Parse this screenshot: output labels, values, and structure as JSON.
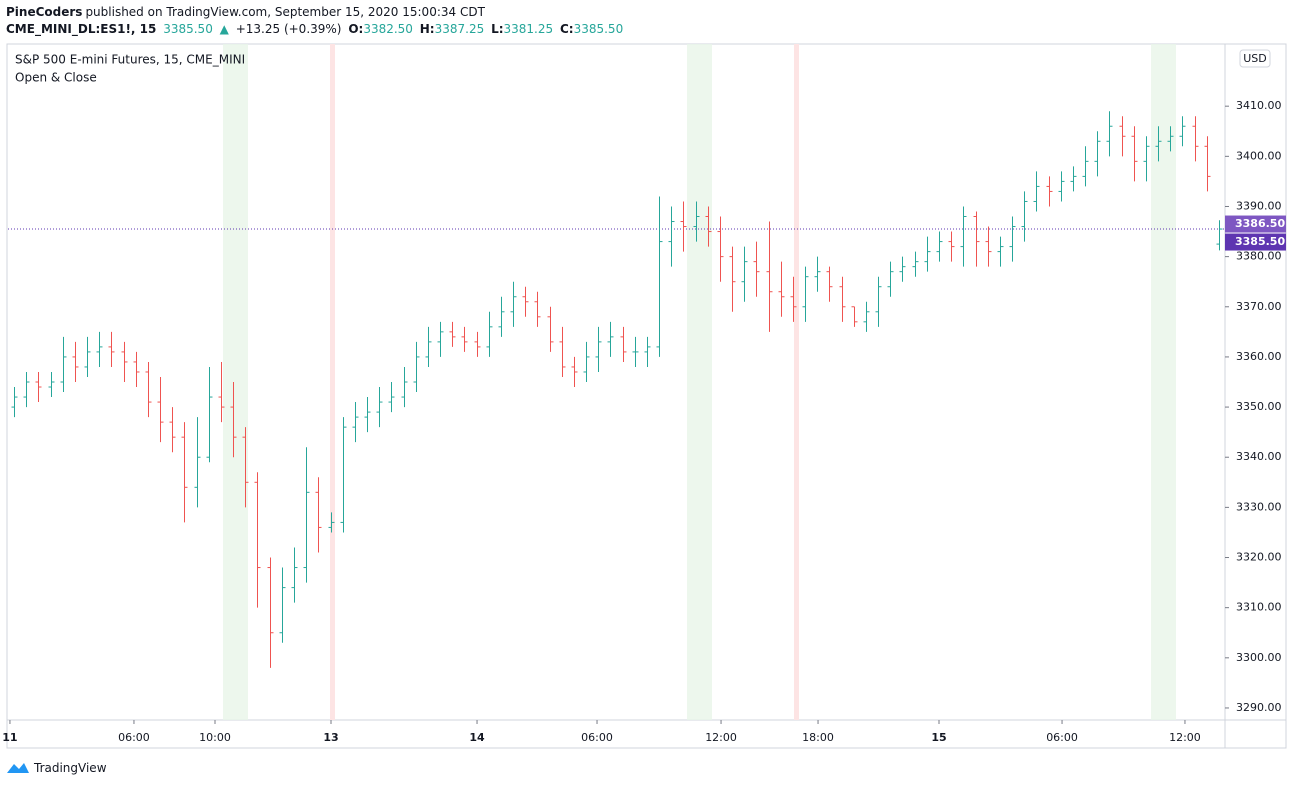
{
  "header": {
    "author": "PineCoders",
    "published": "published on TradingView.com, September 15, 2020 15:00:34 CDT",
    "quote": {
      "symbol": "CME_MINI_DL:ES1!, 15",
      "last": "3385.50",
      "arrow": "▲",
      "change": "+13.25 (+0.39%)",
      "o_label": "O:",
      "o": "3382.50",
      "h_label": "H:",
      "h": "3387.25",
      "l_label": "L:",
      "l": "3381.25",
      "c_label": "C:",
      "c": "3385.50"
    }
  },
  "footer": {
    "brand": "TradingView"
  },
  "chart_data": {
    "type": "ohlc",
    "title": "S&P 500 E-mini Futures, 15, CME_MINI",
    "subtitle": "Open & Close",
    "currency": "USD",
    "up_color": "#26a69a",
    "down_color": "#ef5350",
    "xlim": [
      -0.5,
      99.5
    ],
    "xticks": [
      {
        "value": -0.34,
        "label": "11"
      },
      {
        "value": 9.85,
        "label": "06:00"
      },
      {
        "value": 16.51,
        "label": "10:00"
      },
      {
        "value": 26.04,
        "label": "13"
      },
      {
        "value": 38.04,
        "label": "14"
      },
      {
        "value": 47.9,
        "label": "06:00"
      },
      {
        "value": 58.09,
        "label": "12:00"
      },
      {
        "value": 66.06,
        "label": "18:00"
      },
      {
        "value": 76.0,
        "label": "15"
      },
      {
        "value": 86.11,
        "label": "06:00"
      },
      {
        "value": 96.21,
        "label": "12:00"
      }
    ],
    "ylim": [
      3287.6,
      3422.4
    ],
    "yticks": [
      {
        "value": 3290,
        "label": "3290.00"
      },
      {
        "value": 3300,
        "label": "3300.00"
      },
      {
        "value": 3310,
        "label": "3310.00"
      },
      {
        "value": 3320,
        "label": "3320.00"
      },
      {
        "value": 3330,
        "label": "3330.00"
      },
      {
        "value": 3340,
        "label": "3340.00"
      },
      {
        "value": 3350,
        "label": "3350.00"
      },
      {
        "value": 3360,
        "label": "3360.00"
      },
      {
        "value": 3370,
        "label": "3370.00"
      },
      {
        "value": 3380,
        "label": "3380.00"
      },
      {
        "value": 3390,
        "label": "3390.00"
      },
      {
        "value": 3400,
        "label": "3400.00"
      },
      {
        "value": 3410,
        "label": "3410.00"
      }
    ],
    "price_labels": [
      {
        "value": 3386.5,
        "label": "3386.50",
        "color": "#7e57c2"
      },
      {
        "value": 3385.5,
        "label": "3385.50",
        "color": "#5e35b1"
      }
    ],
    "price_line": 3385.5,
    "open": [
      3350,
      3352,
      3355,
      3354,
      3355,
      3360,
      3358,
      3361,
      3362,
      3361,
      3359,
      3357,
      3351,
      3347,
      3344,
      3334,
      3340,
      3352,
      3350,
      3344,
      3335,
      3318,
      3305,
      3314,
      3318,
      3333,
      3326,
      3327,
      3346,
      3348,
      3349,
      3351,
      3352,
      3355,
      3360,
      3363,
      3365,
      3364,
      3363,
      3362,
      3366,
      3369,
      3372,
      3371,
      3368,
      3363,
      3358,
      3357,
      3360,
      3363,
      3364,
      3361,
      3361,
      3362,
      3383,
      3387,
      3386,
      3388,
      3385,
      3380,
      3375,
      3379,
      3377,
      3373,
      3372,
      3370,
      3376,
      3377,
      3374,
      3370,
      3367,
      3369,
      3374,
      3377,
      3378,
      3379,
      3381,
      3383,
      3382,
      3388,
      3383,
      3381,
      3382,
      3386,
      3391,
      3394,
      3393,
      3395,
      3396,
      3399,
      3403,
      3406,
      3404,
      3399,
      3402,
      3403,
      3404,
      3406,
      3402,
      3382.5
    ],
    "high": [
      3354,
      3357,
      3357,
      3357,
      3364,
      3363,
      3364,
      3365,
      3365,
      3363,
      3361,
      3359,
      3356,
      3350,
      3347,
      3348,
      3358,
      3359,
      3355,
      3346,
      3337,
      3320,
      3318,
      3322,
      3342,
      3336,
      3329,
      3348,
      3351,
      3352,
      3354,
      3355,
      3358,
      3363,
      3366,
      3367,
      3367,
      3366,
      3365,
      3369,
      3372,
      3375,
      3374,
      3373,
      3370,
      3366,
      3360,
      3363,
      3366,
      3367,
      3366,
      3364,
      3364,
      3392,
      3390,
      3391,
      3391,
      3390,
      3388,
      3382,
      3382,
      3383,
      3387,
      3379,
      3376,
      3378,
      3380,
      3378,
      3376,
      3370,
      3371,
      3376,
      3379,
      3380,
      3381,
      3384,
      3385,
      3385,
      3390,
      3389,
      3386,
      3384,
      3388,
      3393,
      3397,
      3396,
      3397,
      3398,
      3402,
      3405,
      3409,
      3408,
      3406,
      3404,
      3406,
      3406,
      3408,
      3408,
      3404,
      3387.25
    ],
    "low": [
      3348,
      3350,
      3351,
      3352,
      3353,
      3355,
      3356,
      3358,
      3358,
      3355,
      3354,
      3348,
      3343,
      3341,
      3327,
      3330,
      3339,
      3347,
      3340,
      3330,
      3310,
      3298,
      3303,
      3311,
      3315,
      3321,
      3325,
      3325,
      3343,
      3345,
      3346,
      3349,
      3350,
      3353,
      3358,
      3360,
      3362,
      3361,
      3360,
      3360,
      3364,
      3366,
      3368,
      3366,
      3361,
      3356,
      3354,
      3355,
      3357,
      3360,
      3359,
      3358,
      3358,
      3360,
      3378,
      3381,
      3383,
      3382,
      3375,
      3369,
      3371,
      3372,
      3365,
      3368,
      3367,
      3367,
      3373,
      3371,
      3367,
      3366,
      3365,
      3366,
      3372,
      3375,
      3376,
      3377,
      3379,
      3379,
      3378,
      3378,
      3378,
      3378,
      3379,
      3383,
      3389,
      3390,
      3391,
      3393,
      3394,
      3396,
      3400,
      3400,
      3395,
      3395,
      3399,
      3401,
      3402,
      3399,
      3393,
      3381.25
    ],
    "close": [
      3352,
      3355,
      3354,
      3355,
      3360,
      3358,
      3361,
      3362,
      3361,
      3359,
      3357,
      3351,
      3347,
      3344,
      3334,
      3340,
      3352,
      3350,
      3344,
      3335,
      3318,
      3305,
      3314,
      3318,
      3333,
      3326,
      3327,
      3346,
      3348,
      3349,
      3351,
      3352,
      3355,
      3360,
      3363,
      3365,
      3364,
      3363,
      3362,
      3366,
      3369,
      3372,
      3371,
      3368,
      3363,
      3358,
      3357,
      3360,
      3363,
      3364,
      3361,
      3361,
      3362,
      3383,
      3387,
      3386,
      3388,
      3385,
      3380,
      3375,
      3379,
      3377,
      3373,
      3372,
      3370,
      3376,
      3377,
      3374,
      3370,
      3367,
      3369,
      3374,
      3377,
      3378,
      3379,
      3381,
      3383,
      3382,
      3388,
      3383,
      3381,
      3382,
      3386,
      3391,
      3394,
      3393,
      3395,
      3396,
      3399,
      3403,
      3406,
      3404,
      3399,
      3402,
      3403,
      3404,
      3406,
      3402,
      3396,
      3385.5
    ]
  }
}
